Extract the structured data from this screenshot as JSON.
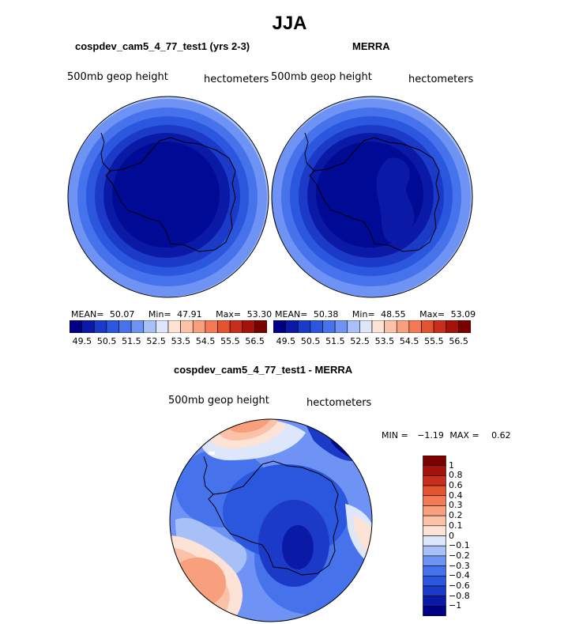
{
  "title": "JJA",
  "panels": {
    "left": {
      "subtitle": "cospdev_cam5_4_77_test1 (yrs 2-3)",
      "field": "500mb geop height",
      "units": "hectometers",
      "mean_label": "MEAN=",
      "mean": "50.07",
      "min_label": "Min=",
      "min": "47.91",
      "max_label": "Max=",
      "max": "53.30"
    },
    "right": {
      "subtitle": "MERRA",
      "field": "500mb geop height",
      "units": "hectometers",
      "mean_label": "MEAN=",
      "mean": "50.38",
      "min_label": "Min=",
      "min": "48.55",
      "max_label": "Max=",
      "max": "53.09"
    },
    "diff": {
      "subtitle": "cospdev_cam5_4_77_test1 - MERRA",
      "field": "500mb geop height",
      "units": "hectometers",
      "min_label": "MIN =",
      "min": "−1.19",
      "max_label": "MAX =",
      "max": "0.62"
    }
  },
  "colorbar_top": {
    "colors": [
      "#000087",
      "#0b1aa6",
      "#1b3ac8",
      "#2a57dd",
      "#4673ec",
      "#6f93f4",
      "#a7c1f8",
      "#dde6fb",
      "#fde3d6",
      "#fbc2a8",
      "#f8a07d",
      "#f37a55",
      "#e4532f",
      "#c72e1b",
      "#a41209",
      "#7a0000"
    ],
    "ticks": [
      "49.5",
      "50.5",
      "51.5",
      "52.5",
      "53.5",
      "54.5",
      "55.5",
      "56.5"
    ]
  },
  "colorbar_diff": {
    "colors": [
      "#000087",
      "#0b1aa6",
      "#1b3ac8",
      "#2a57dd",
      "#4673ec",
      "#6f93f4",
      "#a7c1f8",
      "#dde6fb",
      "#fde3d6",
      "#fbc2a8",
      "#f8a07d",
      "#f37a55",
      "#e4532f",
      "#c72e1b",
      "#a41209",
      "#7a0000"
    ],
    "ticks": [
      "1",
      "0.8",
      "0.6",
      "0.4",
      "0.3",
      "0.2",
      "0.1",
      "0",
      "−0.1",
      "−0.2",
      "−0.3",
      "−0.4",
      "−0.6",
      "−0.8",
      "−1"
    ]
  }
}
